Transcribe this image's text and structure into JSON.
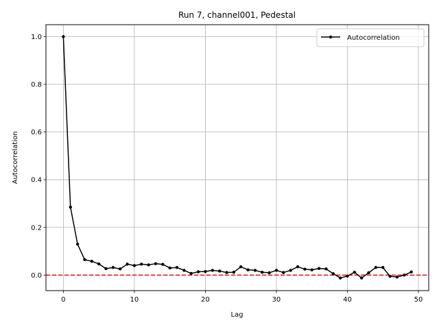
{
  "chart_data": {
    "type": "line",
    "title": "Run 7, channel001, Pedestal",
    "xlabel": "Lag",
    "ylabel": "Autocorrelation",
    "xlim": [
      -2.45,
      51.45
    ],
    "ylim": [
      -0.065,
      1.05
    ],
    "xticks": [
      0,
      10,
      20,
      30,
      40,
      50
    ],
    "yticks": [
      0.0,
      0.2,
      0.4,
      0.6,
      0.8,
      1.0
    ],
    "xtick_labels": [
      "0",
      "10",
      "20",
      "30",
      "40",
      "50"
    ],
    "ytick_labels": [
      "0.0",
      "0.2",
      "0.4",
      "0.6",
      "0.8",
      "1.0"
    ],
    "grid": true,
    "legend_position": "top-right",
    "series": [
      {
        "name": "Autocorrelation",
        "color": "#000000",
        "marker": "dot",
        "x": [
          0,
          1,
          2,
          3,
          4,
          5,
          6,
          7,
          8,
          9,
          10,
          11,
          12,
          13,
          14,
          15,
          16,
          17,
          18,
          19,
          20,
          21,
          22,
          23,
          24,
          25,
          26,
          27,
          28,
          29,
          30,
          31,
          32,
          33,
          34,
          35,
          36,
          37,
          38,
          39,
          40,
          41,
          42,
          43,
          44,
          45,
          46,
          47,
          48,
          49
        ],
        "y": [
          1.0,
          0.285,
          0.13,
          0.065,
          0.058,
          0.047,
          0.027,
          0.032,
          0.026,
          0.046,
          0.04,
          0.046,
          0.043,
          0.048,
          0.045,
          0.03,
          0.032,
          0.02,
          0.007,
          0.014,
          0.015,
          0.02,
          0.017,
          0.011,
          0.012,
          0.035,
          0.022,
          0.02,
          0.012,
          0.01,
          0.02,
          0.011,
          0.02,
          0.035,
          0.025,
          0.022,
          0.028,
          0.026,
          0.006,
          -0.012,
          -0.004,
          0.012,
          -0.012,
          0.01,
          0.032,
          0.032,
          -0.005,
          -0.008,
          0.0,
          0.013
        ]
      }
    ],
    "reference_line": {
      "y": 0.0,
      "color": "#ff0000",
      "style": "dashed"
    }
  }
}
